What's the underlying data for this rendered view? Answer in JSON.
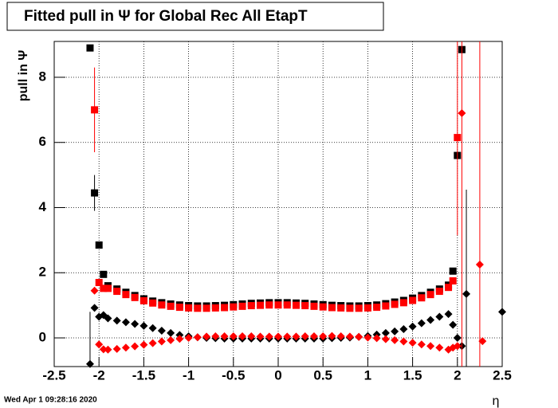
{
  "chart_data": {
    "type": "scatter",
    "title": "Fitted pull in  Ψ  for Global Rec All EtapT",
    "y_label": "pull in  Ψ",
    "x_label": "η",
    "timestamp": "Wed Apr  1 09:28:16 2020",
    "xlim": [
      -2.5,
      2.5
    ],
    "ylim": [
      -0.88,
      9.1
    ],
    "xticks": [
      -2.5,
      -2,
      -1.5,
      -1,
      -0.5,
      0,
      0.5,
      1,
      1.5,
      2,
      2.5
    ],
    "yticks": [
      0,
      2,
      4,
      6,
      8
    ],
    "grid": true,
    "series": [
      {
        "marker": "square",
        "color": "#000000",
        "x": [
          -2.1,
          -2.05,
          -2.0,
          -1.95,
          -1.9,
          -1.8,
          -1.7,
          -1.6,
          -1.5,
          -1.4,
          -1.3,
          -1.2,
          -1.1,
          -1.0,
          -0.9,
          -0.8,
          -0.7,
          -0.6,
          -0.5,
          -0.4,
          -0.3,
          -0.2,
          -0.1,
          0,
          0.1,
          0.2,
          0.3,
          0.4,
          0.5,
          0.6,
          0.7,
          0.8,
          0.9,
          1.0,
          1.1,
          1.2,
          1.3,
          1.4,
          1.5,
          1.6,
          1.7,
          1.8,
          1.9,
          1.95,
          2.0,
          2.05
        ],
        "values": [
          8.9,
          4.45,
          2.85,
          1.95,
          1.6,
          1.5,
          1.4,
          1.3,
          1.2,
          1.13,
          1.08,
          1.04,
          1.01,
          0.99,
          0.98,
          0.98,
          0.99,
          1.0,
          1.02,
          1.04,
          1.06,
          1.07,
          1.08,
          1.08,
          1.08,
          1.07,
          1.06,
          1.04,
          1.02,
          1.0,
          0.99,
          0.98,
          0.98,
          0.99,
          1.01,
          1.05,
          1.1,
          1.15,
          1.22,
          1.3,
          1.4,
          1.5,
          1.62,
          2.05,
          5.6,
          8.85
        ],
        "errors": [
          null,
          0.55,
          null,
          null,
          null,
          null,
          null,
          null,
          null,
          null,
          null,
          null,
          null,
          null,
          null,
          null,
          null,
          null,
          null,
          null,
          null,
          null,
          null,
          null,
          null,
          null,
          null,
          null,
          null,
          null,
          null,
          null,
          null,
          null,
          null,
          null,
          null,
          null,
          null,
          null,
          null,
          null,
          null,
          null,
          null,
          null
        ]
      },
      {
        "marker": "square",
        "color": "#ff0000",
        "x": [
          -2.05,
          -2.0,
          -1.95,
          -1.9,
          -1.8,
          -1.7,
          -1.6,
          -1.5,
          -1.4,
          -1.3,
          -1.2,
          -1.1,
          -1.0,
          -0.9,
          -0.8,
          -0.7,
          -0.6,
          -0.5,
          -0.4,
          -0.3,
          -0.2,
          -0.1,
          0,
          0.1,
          0.2,
          0.3,
          0.4,
          0.5,
          0.6,
          0.7,
          0.8,
          0.9,
          1.0,
          1.1,
          1.2,
          1.3,
          1.4,
          1.5,
          1.6,
          1.7,
          1.8,
          1.9,
          1.95,
          2.0
        ],
        "values": [
          7.0,
          1.7,
          1.52,
          1.52,
          1.43,
          1.33,
          1.24,
          1.14,
          1.07,
          1.01,
          0.97,
          0.94,
          0.92,
          0.91,
          0.91,
          0.92,
          0.93,
          0.95,
          0.97,
          0.99,
          1.0,
          1.01,
          1.01,
          1.01,
          1.0,
          0.99,
          0.97,
          0.95,
          0.93,
          0.92,
          0.91,
          0.91,
          0.92,
          0.94,
          0.98,
          1.03,
          1.08,
          1.15,
          1.23,
          1.33,
          1.43,
          1.55,
          1.75,
          6.15
        ],
        "errors": [
          1.3,
          null,
          null,
          null,
          null,
          null,
          null,
          null,
          null,
          null,
          null,
          null,
          null,
          null,
          null,
          null,
          null,
          null,
          null,
          null,
          null,
          null,
          null,
          null,
          null,
          null,
          null,
          null,
          null,
          null,
          null,
          null,
          null,
          null,
          null,
          null,
          null,
          null,
          null,
          null,
          null,
          null,
          null,
          3.0
        ]
      },
      {
        "marker": "diamond",
        "color": "#000000",
        "x": [
          -2.1,
          -2.05,
          -2.0,
          -1.95,
          -1.9,
          -1.8,
          -1.7,
          -1.6,
          -1.5,
          -1.4,
          -1.3,
          -1.2,
          -1.1,
          -1.0,
          -0.9,
          -0.8,
          -0.7,
          -0.6,
          -0.5,
          -0.4,
          -0.3,
          -0.2,
          -0.1,
          0,
          0.1,
          0.2,
          0.3,
          0.4,
          0.5,
          0.6,
          0.7,
          0.8,
          0.9,
          1.0,
          1.1,
          1.2,
          1.3,
          1.4,
          1.5,
          1.6,
          1.7,
          1.8,
          1.9,
          1.95,
          2.0,
          2.05,
          2.1,
          2.5
        ],
        "values": [
          -0.8,
          0.92,
          0.65,
          0.7,
          0.6,
          0.53,
          0.48,
          0.43,
          0.37,
          0.3,
          0.22,
          0.15,
          0.09,
          0.05,
          0.02,
          0,
          -0.01,
          -0.02,
          -0.02,
          -0.02,
          -0.02,
          -0.02,
          -0.02,
          -0.02,
          -0.02,
          -0.02,
          -0.02,
          -0.02,
          -0.02,
          -0.01,
          0,
          0.01,
          0.03,
          0.06,
          0.1,
          0.15,
          0.2,
          0.27,
          0.35,
          0.45,
          0.55,
          0.65,
          0.73,
          0.4,
          0.0,
          -0.25,
          1.35,
          0.8
        ],
        "errors": [
          1.6,
          null,
          null,
          null,
          null,
          null,
          null,
          null,
          null,
          null,
          null,
          null,
          null,
          null,
          null,
          null,
          null,
          null,
          null,
          null,
          null,
          null,
          null,
          null,
          null,
          null,
          null,
          null,
          null,
          null,
          null,
          null,
          null,
          null,
          null,
          null,
          null,
          null,
          null,
          null,
          null,
          null,
          null,
          null,
          null,
          null,
          3.2,
          1.5
        ]
      },
      {
        "marker": "diamond",
        "color": "#ff0000",
        "x": [
          -2.05,
          -2.0,
          -1.95,
          -1.9,
          -1.8,
          -1.7,
          -1.6,
          -1.5,
          -1.4,
          -1.3,
          -1.2,
          -1.1,
          -1.0,
          -0.9,
          -0.8,
          -0.7,
          -0.6,
          -0.5,
          -0.4,
          -0.3,
          -0.2,
          -0.1,
          0,
          0.1,
          0.2,
          0.3,
          0.4,
          0.5,
          0.6,
          0.7,
          0.8,
          0.9,
          1.0,
          1.1,
          1.2,
          1.3,
          1.4,
          1.5,
          1.6,
          1.7,
          1.8,
          1.9,
          1.95,
          2.0,
          2.05,
          2.25,
          2.28
        ],
        "values": [
          1.45,
          -0.2,
          -0.35,
          -0.36,
          -0.34,
          -0.3,
          -0.26,
          -0.21,
          -0.16,
          -0.11,
          -0.07,
          -0.03,
          0,
          0.02,
          0.04,
          0.05,
          0.05,
          0.05,
          0.05,
          0.05,
          0.04,
          0.04,
          0.04,
          0.04,
          0.04,
          0.05,
          0.05,
          0.05,
          0.06,
          0.05,
          0.04,
          0.03,
          0.01,
          -0.01,
          -0.04,
          -0.07,
          -0.11,
          -0.15,
          -0.2,
          -0.25,
          -0.3,
          -0.36,
          -0.3,
          -0.25,
          6.9,
          2.25,
          -0.1
        ],
        "errors": [
          null,
          null,
          null,
          null,
          null,
          null,
          null,
          null,
          null,
          null,
          null,
          null,
          null,
          null,
          null,
          null,
          null,
          null,
          null,
          null,
          null,
          null,
          null,
          null,
          null,
          null,
          null,
          null,
          null,
          null,
          null,
          null,
          null,
          null,
          null,
          null,
          null,
          null,
          null,
          null,
          null,
          null,
          null,
          null,
          9.5,
          9.5,
          null
        ]
      }
    ]
  }
}
